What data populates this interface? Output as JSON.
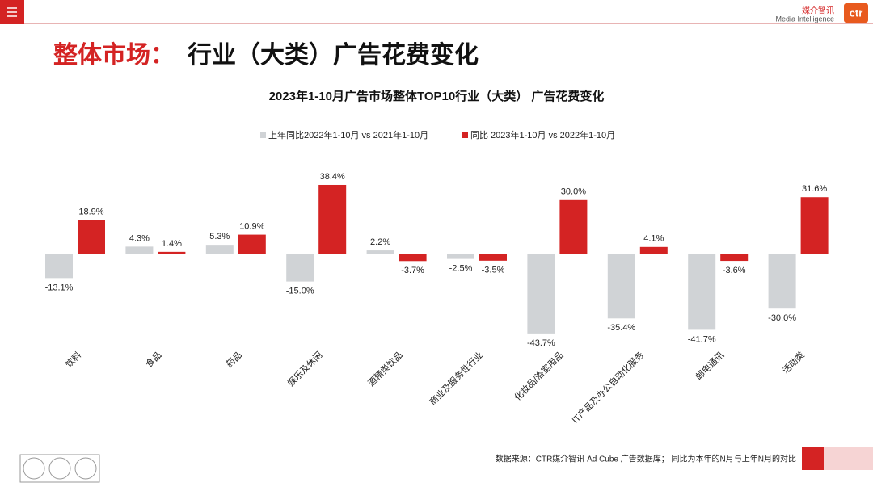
{
  "header": {
    "title_highlight": "整体市场：",
    "title": "行业（大类）广告花费变化",
    "logo_cn": "媒介智讯",
    "logo_en": "Media Intelligence",
    "logo_mark": "ctr"
  },
  "chart_data": {
    "type": "bar",
    "title": "2023年1-10月广告市场整体TOP10行业（大类） 广告花费变化",
    "categories": [
      "饮料",
      "食品",
      "药品",
      "娱乐及休闲",
      "酒精类饮品",
      "商业及服务性行业",
      "化妆品/浴室用品",
      "IT产品及办公自动化服务",
      "邮电通讯",
      "活动类"
    ],
    "series": [
      {
        "name": "上年同比2022年1-10月  vs  2021年1-10月",
        "color": "#d0d3d6",
        "values": [
          -13.1,
          4.3,
          5.3,
          -15.0,
          2.2,
          -2.5,
          -43.7,
          -35.4,
          -41.7,
          -30.0
        ],
        "value_labels": [
          "-13.1%",
          "4.3%",
          "5.3%",
          "-15.0%",
          "2.2%",
          "-2.5%",
          "-43.7%",
          "-35.4%",
          "-41.7%",
          "-30.0%"
        ]
      },
      {
        "name": "同比 2023年1-10月  vs  2022年1-10月",
        "color": "#d42323",
        "values": [
          18.9,
          1.4,
          10.9,
          38.4,
          -3.7,
          -3.5,
          30.0,
          4.1,
          -3.6,
          31.6
        ],
        "value_labels": [
          "18.9%",
          "1.4%",
          "10.9%",
          "38.4%",
          "-3.7%",
          "-3.5%",
          "30.0%",
          "4.1%",
          "-3.6%",
          "31.6%"
        ]
      }
    ]
  },
  "footer": {
    "source": "数据来源：CTR媒介智讯 Ad Cube 广告数据库；  同比为本年的N月与上年N月的对比"
  }
}
